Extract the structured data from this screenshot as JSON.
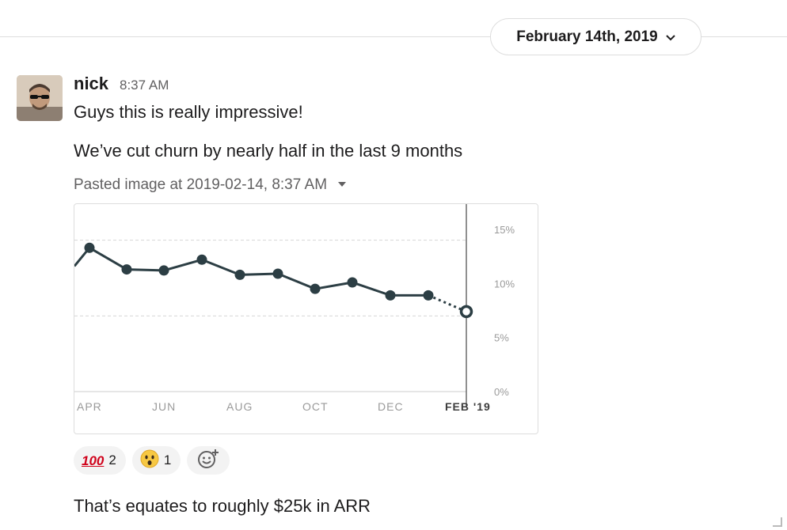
{
  "header": {
    "date_label": "February 14th, 2019",
    "date_chevron_icon": "chevron-down-icon"
  },
  "message": {
    "author": "nick",
    "time": "8:37 AM",
    "lines": [
      "Guys this is really impressive!",
      "We’ve cut churn by nearly half in the last 9 months"
    ],
    "attachment_label": "Pasted image at 2019-02-14, 8:37 AM",
    "attachment_caret_icon": "caret-down-icon",
    "followup": "That’s equates to roughly $25k in ARR"
  },
  "reactions": [
    {
      "emoji": "💯",
      "count": "2",
      "icon": "hundred-points-icon"
    },
    {
      "emoji": "😲",
      "count": "1",
      "icon": "astonished-face-icon"
    },
    {
      "icon": "add-reaction-icon"
    }
  ],
  "chart_data": {
    "type": "line",
    "x_tick_labels": [
      "APR",
      "JUN",
      "AUG",
      "OCT",
      "DEC",
      "FEB '19"
    ],
    "y_tick_labels": [
      "15%",
      "10%",
      "5%",
      "0%"
    ],
    "ylim": [
      0,
      15
    ],
    "series": [
      {
        "values": [
          11.6,
          13.3,
          11.3,
          11.2,
          12.2,
          10.8,
          10.9,
          9.5,
          10.1,
          8.9,
          8.9,
          7.4
        ],
        "last_point_projected": true
      }
    ],
    "grid": "dashed at 14% and 7%",
    "colors": {
      "line": "#2c3e44",
      "axis": "#cccccc",
      "grid": "#d6d6d6",
      "tick": "#9a9a9a"
    }
  }
}
